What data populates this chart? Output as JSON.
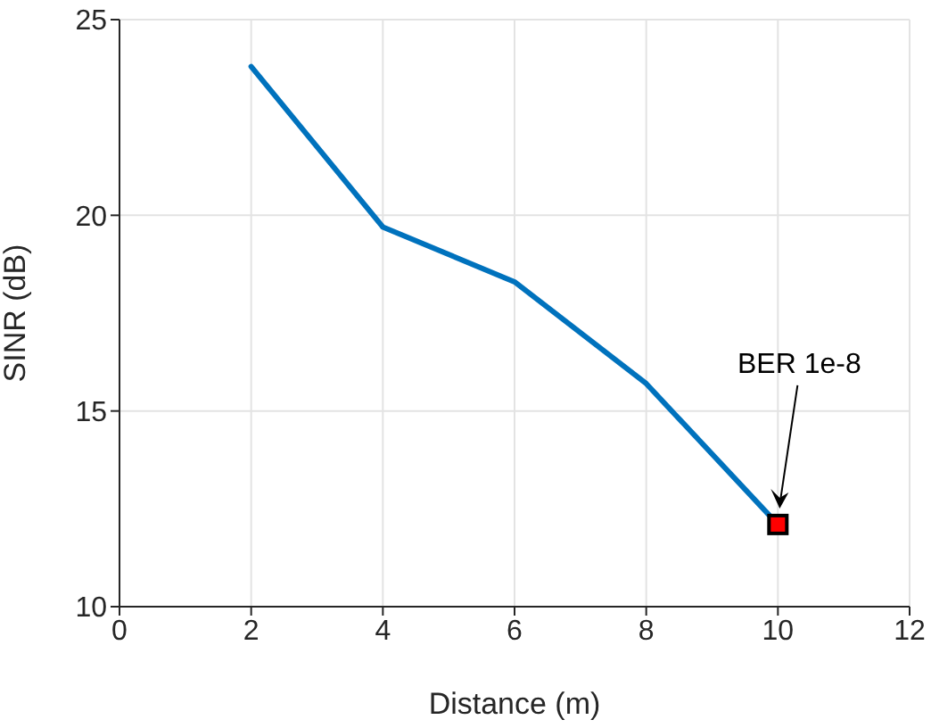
{
  "chart_data": {
    "type": "line",
    "xlabel": "Distance (m)",
    "ylabel": "SINR (dB)",
    "xlim": [
      0,
      12
    ],
    "xticks": [
      0,
      2,
      4,
      6,
      8,
      10,
      12
    ],
    "ylim": [
      10,
      25
    ],
    "yticks": [
      10,
      15,
      20,
      25
    ],
    "grid": true,
    "line_style": "solid",
    "series": [
      {
        "color": "#0072bd",
        "marker": "none",
        "x": [
          2,
          4,
          6,
          8,
          10
        ],
        "values": [
          23.8,
          19.7,
          18.3,
          15.7,
          12.1
        ]
      },
      {
        "type": "scatter",
        "color": "#ff0000",
        "marker": "square",
        "x": [
          10
        ],
        "values": [
          12.1
        ]
      }
    ],
    "annotations": [
      "BER 1e-8"
    ]
  }
}
